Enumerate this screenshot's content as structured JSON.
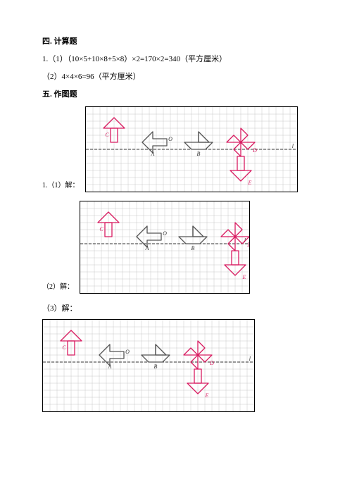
{
  "section4": {
    "title": "四. 计算题",
    "q1part1": "1.（1）（10×5+10×8+5×8）×2=170×2=340（平方厘米）",
    "q1part2": "（2）4×4×6=96（平方厘米）"
  },
  "section5": {
    "title": "五. 作图题",
    "label1": "1.（1）解：",
    "label2": "（2）解：",
    "label3": "（3）解："
  },
  "colors": {
    "grid": "#c8c8c8",
    "axis": "#333333",
    "shapeA": "#555555",
    "shapeB": "#d81b60",
    "text": "#333333"
  },
  "svg": {
    "cell": 10,
    "wide": {
      "cols": 30,
      "rows": 12
    },
    "mid": {
      "cols": 24,
      "rows": 13
    }
  }
}
